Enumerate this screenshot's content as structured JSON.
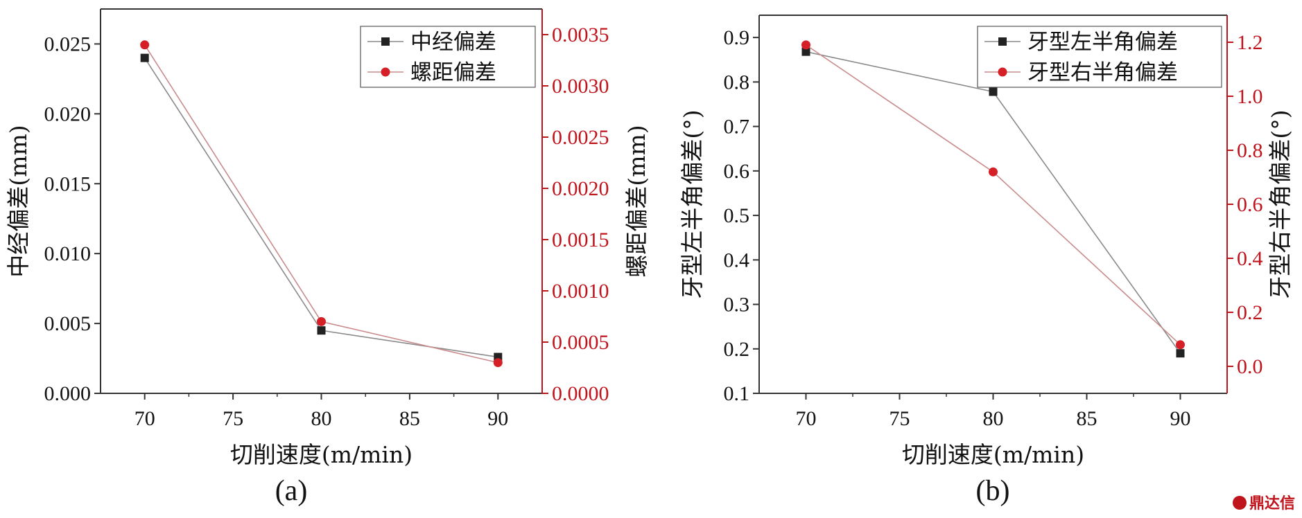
{
  "chart_data": [
    {
      "type": "line",
      "panel_label": "(a)",
      "xlabel": "切削速度(m/min)",
      "ylabel_left": "中经偏差(mm)",
      "ylabel_right": "螺距偏差(mm)",
      "xlim": [
        67.5,
        92.5
      ],
      "ylim_left": [
        0,
        0.0275
      ],
      "ylim_right": [
        0,
        0.00375
      ],
      "x_ticks": [
        "70",
        "75",
        "80",
        "85",
        "90"
      ],
      "y_left_ticks": [
        "0.000",
        "0.005",
        "0.010",
        "0.015",
        "0.020",
        "0.025"
      ],
      "y_right_ticks": [
        "0.0000",
        "0.0005",
        "0.0010",
        "0.0015",
        "0.0020",
        "0.0025",
        "0.0030",
        "0.0035"
      ],
      "legend_position": "top-right",
      "grid": false,
      "series": [
        {
          "name": "中经偏差",
          "axis": "left",
          "marker": "square",
          "color": "#222222",
          "line_color": "#8a8a8a",
          "x": [
            70,
            80,
            90
          ],
          "y": [
            0.024,
            0.0045,
            0.0026
          ]
        },
        {
          "name": "螺距偏差",
          "axis": "right",
          "marker": "circle",
          "color": "#d62027",
          "line_color": "#c98b8b",
          "x": [
            70,
            80,
            90
          ],
          "y": [
            0.0034,
            0.0007,
            0.0003
          ]
        }
      ]
    },
    {
      "type": "line",
      "panel_label": "(b)",
      "xlabel": "切削速度(m/min)",
      "ylabel_left": "牙型左半角偏差(°)",
      "ylabel_right": "牙型右半角偏差(°)",
      "xlim": [
        67.5,
        92.5
      ],
      "ylim_left": [
        0.1,
        0.95
      ],
      "ylim_right": [
        -0.1,
        1.3
      ],
      "x_ticks": [
        "70",
        "75",
        "80",
        "85",
        "90"
      ],
      "y_left_ticks": [
        "0.1",
        "0.2",
        "0.3",
        "0.4",
        "0.5",
        "0.6",
        "0.7",
        "0.8",
        "0.9"
      ],
      "y_right_ticks": [
        "0.0",
        "0.2",
        "0.4",
        "0.6",
        "0.8",
        "1.0",
        "1.2"
      ],
      "legend_position": "top-right",
      "grid": false,
      "series": [
        {
          "name": "牙型左半角偏差",
          "axis": "left",
          "marker": "square",
          "color": "#222222",
          "line_color": "#8a8a8a",
          "x": [
            70,
            80,
            90
          ],
          "y": [
            0.868,
            0.778,
            0.19
          ]
        },
        {
          "name": "牙型右半角偏差",
          "axis": "right",
          "marker": "circle",
          "color": "#d62027",
          "line_color": "#c98b8b",
          "x": [
            70,
            80,
            90
          ],
          "y": [
            1.19,
            0.72,
            0.08
          ]
        }
      ]
    }
  ],
  "watermark": "鼎达信",
  "colors": {
    "right_axis": "#c0141c",
    "axis": "#333333"
  }
}
